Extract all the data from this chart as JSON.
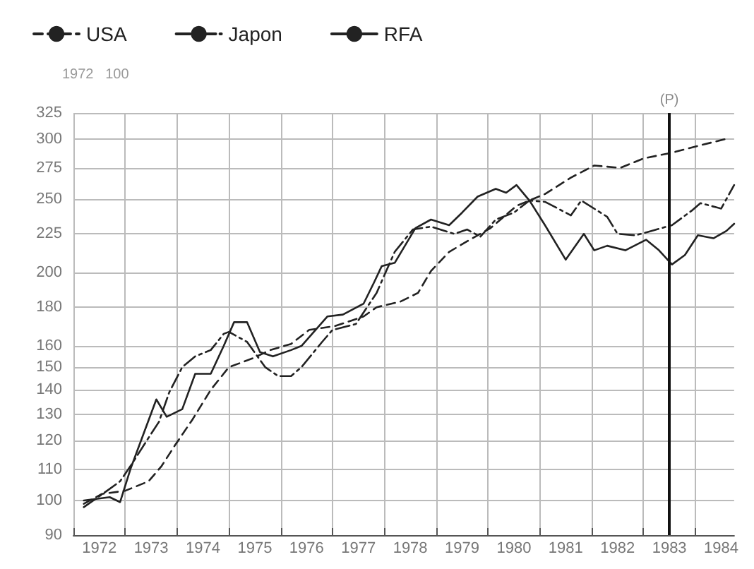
{
  "chart_data": {
    "type": "line",
    "log": "y",
    "grid": true,
    "legend": "top left",
    "marker": "none",
    "annotations": [
      "1972   100"
    ],
    "xlim": [
      1972,
      1984.75
    ],
    "xticks": [
      {
        "value": 1972,
        "label": null
      },
      {
        "value": 1973,
        "label": null
      },
      {
        "value": 1974,
        "label": null
      },
      {
        "value": 1975,
        "label": null
      },
      {
        "value": 1976,
        "label": null
      },
      {
        "value": 1977,
        "label": null
      },
      {
        "value": 1978,
        "label": null
      },
      {
        "value": 1979,
        "label": null
      },
      {
        "value": 1980,
        "label": null
      },
      {
        "value": 1981,
        "label": null
      },
      {
        "value": 1982,
        "label": null
      },
      {
        "value": 1983,
        "label": null
      },
      {
        "value": 1984,
        "label": null
      },
      {
        "value": 1972.5,
        "label": "1972"
      },
      {
        "value": 1973.5,
        "label": "1973"
      },
      {
        "value": 1974.5,
        "label": "1974"
      },
      {
        "value": 1975.5,
        "label": "1975"
      },
      {
        "value": 1976.5,
        "label": "1976"
      },
      {
        "value": 1977.5,
        "label": "1977"
      },
      {
        "value": 1978.5,
        "label": "1978"
      },
      {
        "value": 1979.5,
        "label": "1979"
      },
      {
        "value": 1980.5,
        "label": "1980"
      },
      {
        "value": 1981.5,
        "label": "1981"
      },
      {
        "value": 1982.5,
        "label": "1982"
      },
      {
        "value": 1983.5,
        "label": "1983"
      },
      {
        "value": 1984.5,
        "label": "1984"
      }
    ],
    "ylim": [
      90,
      325
    ],
    "yticks": [
      90,
      100,
      110,
      120,
      130,
      140,
      150,
      160,
      180,
      200,
      225,
      250,
      275,
      300,
      325
    ],
    "ref_lines": [
      {
        "axis": "x",
        "value": 1983.5,
        "label": "(P)",
        "color": "#111111"
      }
    ],
    "series": [
      {
        "name": "USA",
        "color": "#222222",
        "line_style": "dashed",
        "x": [
          1972.2,
          1972.55,
          1973.0,
          1973.45,
          1973.7,
          1973.95,
          1974.3,
          1974.65,
          1975.0,
          1975.45,
          1975.8,
          1976.2,
          1976.55,
          1977.05,
          1977.6,
          1977.85,
          1978.3,
          1978.65,
          1978.9,
          1979.25,
          1979.6,
          1980.05,
          1980.55,
          1981.1,
          1981.6,
          1982.05,
          1982.55,
          1983.0,
          1983.55,
          1984.05,
          1984.65
        ],
        "values": [
          99,
          102,
          103,
          106,
          111,
          118,
          128,
          140,
          150,
          154,
          158,
          161,
          168,
          170,
          175,
          180,
          183,
          188,
          201,
          213,
          220,
          229,
          245,
          254,
          267,
          277,
          275,
          283,
          288,
          294,
          301
        ]
      },
      {
        "name": "Japon",
        "color": "#222222",
        "line_style": "dashdot",
        "x": [
          1972.2,
          1972.65,
          1972.9,
          1973.1,
          1973.45,
          1973.65,
          1973.85,
          1974.1,
          1974.35,
          1974.65,
          1974.9,
          1975.0,
          1975.35,
          1975.7,
          1975.95,
          1976.2,
          1976.4,
          1976.8,
          1977.0,
          1977.45,
          1977.85,
          1978.2,
          1978.55,
          1978.9,
          1979.35,
          1979.6,
          1979.85,
          1980.15,
          1980.5,
          1980.8,
          1981.1,
          1981.35,
          1981.6,
          1981.8,
          1982.3,
          1982.5,
          1982.85,
          1983.15,
          1983.55,
          1983.95,
          1984.1,
          1984.5,
          1984.75
        ],
        "values": [
          98,
          103,
          106,
          111,
          121,
          127,
          139,
          150,
          155,
          158,
          166,
          167,
          162,
          150,
          146,
          146,
          150,
          162,
          168,
          171,
          188,
          213,
          228,
          230,
          225,
          228,
          223,
          235,
          240,
          249,
          248,
          243,
          238,
          249,
          237,
          225,
          224,
          227,
          231,
          242,
          247,
          243,
          261
        ]
      },
      {
        "name": "RFA",
        "color": "#222222",
        "line_style": "solid",
        "x": [
          1972.2,
          1972.7,
          1972.9,
          1973.1,
          1973.6,
          1973.8,
          1974.1,
          1974.35,
          1974.65,
          1974.9,
          1975.1,
          1975.35,
          1975.6,
          1975.85,
          1976.2,
          1976.4,
          1976.9,
          1977.2,
          1977.6,
          1977.8,
          1977.95,
          1978.2,
          1978.6,
          1978.9,
          1979.25,
          1979.5,
          1979.8,
          1980.15,
          1980.35,
          1980.55,
          1980.8,
          1981.1,
          1981.5,
          1981.85,
          1982.05,
          1982.3,
          1982.65,
          1983.05,
          1983.3,
          1983.55,
          1983.8,
          1984.05,
          1984.35,
          1984.6,
          1984.75
        ],
        "values": [
          100,
          101,
          99.5,
          110,
          136,
          129,
          132,
          147,
          147,
          160,
          172,
          172,
          157,
          155,
          158,
          160,
          175,
          176,
          182,
          194,
          204,
          206,
          229,
          235,
          231,
          240,
          252,
          258,
          255,
          261,
          249,
          231,
          208,
          225,
          214,
          217,
          214,
          221,
          214,
          205,
          211,
          224,
          222,
          227,
          232
        ]
      }
    ]
  }
}
